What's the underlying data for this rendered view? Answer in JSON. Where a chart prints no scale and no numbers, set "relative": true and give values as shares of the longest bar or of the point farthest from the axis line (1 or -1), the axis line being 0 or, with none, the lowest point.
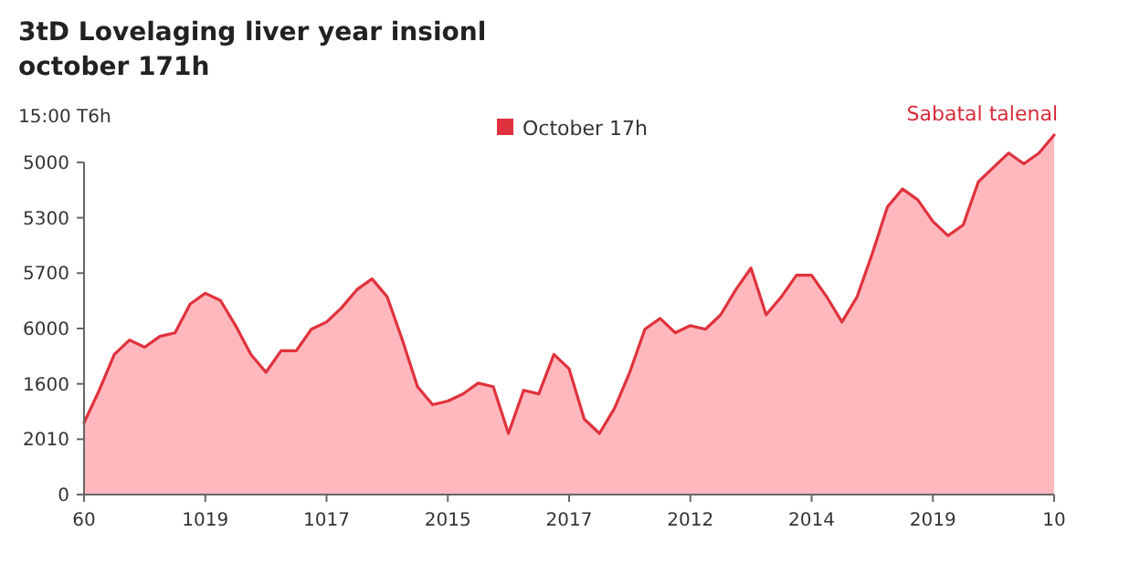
{
  "chart_data": {
    "type": "area",
    "title": "3tD Lovelaging liver year insionl\noctober 171h",
    "ylabel": "15:00 T6h",
    "annotations": [
      "Sabatal talenal",
      "0",
      "2010",
      "1600",
      "6000",
      "5700",
      "5300",
      "5000"
    ],
    "categories": [
      "60",
      null,
      null,
      null,
      null,
      null,
      null,
      null,
      "1019",
      null,
      null,
      null,
      null,
      null,
      null,
      null,
      "1017",
      null,
      null,
      null,
      null,
      null,
      null,
      null,
      "2015",
      null,
      null,
      null,
      null,
      null,
      null,
      null,
      "2017",
      null,
      null,
      null,
      null,
      null,
      null,
      null,
      "2012",
      null,
      null,
      null,
      null,
      null,
      null,
      null,
      "2014",
      null,
      null,
      null,
      null,
      null,
      null,
      null,
      "2019",
      null,
      null,
      null,
      null,
      null,
      null,
      null,
      "10"
    ],
    "relative": true,
    "series": [
      {
        "name": "October 17h",
        "color": "#e0323c",
        "values": [
          0.2,
          0.29,
          0.39,
          0.43,
          0.41,
          0.44,
          0.45,
          0.53,
          0.56,
          0.54,
          0.47,
          0.39,
          0.34,
          0.4,
          0.4,
          0.46,
          0.48,
          0.52,
          0.57,
          0.6,
          0.55,
          0.43,
          0.3,
          0.25,
          0.26,
          0.28,
          0.31,
          0.3,
          0.17,
          0.29,
          0.28,
          0.39,
          0.35,
          0.21,
          0.17,
          0.24,
          0.34,
          0.46,
          0.49,
          0.45,
          0.47,
          0.46,
          0.5,
          0.57,
          0.63,
          0.5,
          0.55,
          0.61,
          0.61,
          0.55,
          0.48,
          0.55,
          0.67,
          0.8,
          0.85,
          0.82,
          0.76,
          0.72,
          0.75,
          0.87,
          0.91,
          0.95,
          0.92,
          0.95,
          1
        ]
      }
    ],
    "legend": "top"
  }
}
